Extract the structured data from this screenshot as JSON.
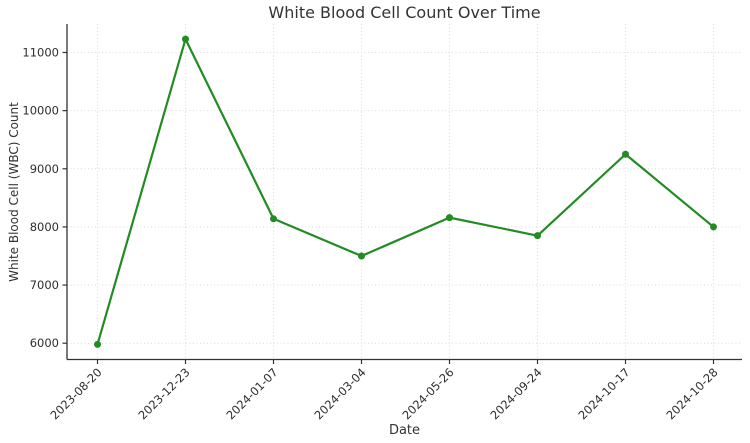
{
  "chart_data": {
    "type": "line",
    "title": "White Blood Cell Count Over Time",
    "xlabel": "Date",
    "ylabel": "White Blood Cell (WBC) Count",
    "categories": [
      "2023-08-20",
      "2023-12-23",
      "2024-01-07",
      "2024-03-04",
      "2024-05-26",
      "2024-09-24",
      "2024-10-17",
      "2024-10-28"
    ],
    "values": [
      5980,
      11230,
      8140,
      7500,
      8160,
      7850,
      9250,
      8000
    ],
    "yticks": [
      6000,
      7000,
      8000,
      9000,
      10000,
      11000
    ],
    "ylim": [
      5720,
      11490
    ],
    "x_tick_rotation_deg": 45,
    "grid": true,
    "grid_style": "dotted",
    "legend": "none",
    "colors": {
      "line": "#228B22",
      "marker": "#228B22",
      "grid": "#dcdcdc",
      "spine": "#333333",
      "tick_text": "#2e2e2e",
      "title_text": "#333333",
      "background": "#ffffff"
    }
  }
}
